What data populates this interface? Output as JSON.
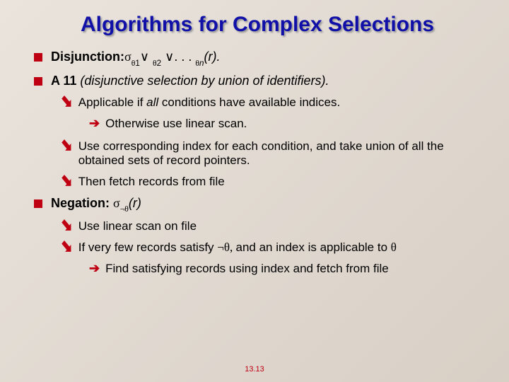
{
  "title": "Algorithms for Complex Selections",
  "footer": "13.13",
  "colors": {
    "title": "#1010a8",
    "accent": "#bf0012",
    "bg_start": "#eae4dd",
    "bg_end": "#d8cfc5"
  },
  "items": {
    "disj_label": "Disjunction:",
    "disj_formula_sigma": "σ",
    "disj_formula_theta": "θ",
    "disj_formula_or": "∨",
    "disj_formula_sub1": "1",
    "disj_formula_sub2": "2",
    "disj_formula_subn": "n",
    "disj_formula_dots": ". . .",
    "disj_formula_r": "(r).",
    "a11_label": "A 11",
    "a11_rest": " (disjunctive selection by union of identifiers).",
    "a11_s1a": "Applicable if ",
    "a11_s1b": "all ",
    "a11_s1c": " conditions have available indices.",
    "a11_s1_sub": "Otherwise use linear scan.",
    "a11_s2": "Use corresponding index for each condition, and take union of all the obtained sets of record pointers.",
    "a11_s3": "Then fetch records from file",
    "neg_label": "Negation:  ",
    "neg_formula_sigma": "σ",
    "neg_formula_not": "¬",
    "neg_formula_theta": "θ",
    "neg_formula_r": "(r)",
    "neg_s1": "Use linear scan on file",
    "neg_s2a": "If very few records satisfy ",
    "neg_s2b": "¬θ, ",
    "neg_s2c": " and an index is applicable to ",
    "neg_s2d": "θ",
    "neg_s2_sub": "Find satisfying records using index and fetch from file"
  }
}
